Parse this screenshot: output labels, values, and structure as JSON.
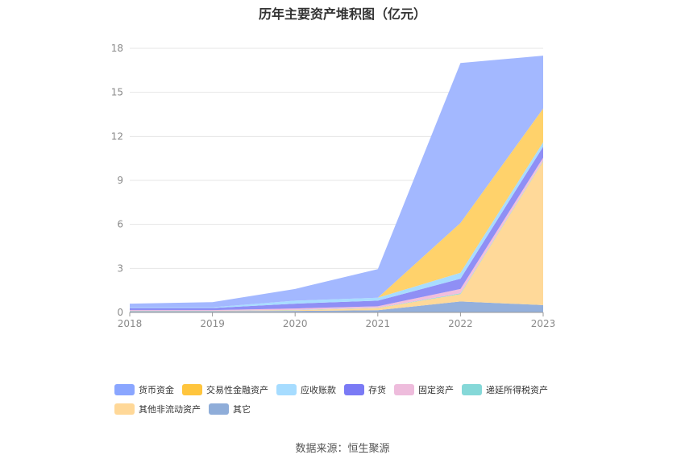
{
  "chart_data": {
    "type": "area",
    "stacked": true,
    "title": "历年主要资产堆积图（亿元）",
    "xlabel": "",
    "ylabel": "",
    "categories": [
      "2018",
      "2019",
      "2020",
      "2021",
      "2022",
      "2023"
    ],
    "y_ticks": [
      "0",
      "3",
      "6",
      "9",
      "12",
      "15",
      "18"
    ],
    "ylim": [
      0,
      18
    ],
    "grid": true,
    "legend_position": "bottom",
    "series": [
      {
        "name": "其它",
        "color": "#94b0dc",
        "values": [
          0.08,
          0.08,
          0.1,
          0.15,
          0.75,
          0.5
        ]
      },
      {
        "name": "其他非流动资产",
        "color": "#ffd999",
        "values": [
          0.02,
          0.02,
          0.05,
          0.15,
          0.5,
          9.8
        ]
      },
      {
        "name": "递延所得税资产",
        "color": "#8fdcdc",
        "values": [
          0.01,
          0.01,
          0.02,
          0.02,
          0.05,
          0.05
        ]
      },
      {
        "name": "固定资产",
        "color": "#f2bfdc",
        "values": [
          0.05,
          0.05,
          0.1,
          0.1,
          0.3,
          0.2
        ]
      },
      {
        "name": "存货",
        "color": "#8f8ff5",
        "values": [
          0.14,
          0.14,
          0.33,
          0.38,
          0.7,
          0.75
        ]
      },
      {
        "name": "应收账款",
        "color": "#a8dcff",
        "values": [
          0.05,
          0.05,
          0.2,
          0.2,
          0.4,
          0.3
        ]
      },
      {
        "name": "交易性金融资产",
        "color": "#ffd26b",
        "values": [
          0.0,
          0.0,
          0.0,
          0.0,
          3.4,
          2.3
        ]
      },
      {
        "name": "货币资金",
        "color": "#a3b8ff",
        "values": [
          0.25,
          0.35,
          0.8,
          1.95,
          10.9,
          3.6
        ]
      }
    ],
    "legend": [
      {
        "name": "货币资金",
        "color": "#8aa6ff"
      },
      {
        "name": "交易性金融资产",
        "color": "#ffc53d"
      },
      {
        "name": "应收账款",
        "color": "#a6dcff"
      },
      {
        "name": "存货",
        "color": "#7a7af5"
      },
      {
        "name": "固定资产",
        "color": "#eebcdc"
      },
      {
        "name": "递延所得税资产",
        "color": "#85d8d8"
      },
      {
        "name": "其他非流动资产",
        "color": "#ffd898"
      },
      {
        "name": "其它",
        "color": "#8fadd9"
      }
    ]
  },
  "source": "数据来源：恒生聚源"
}
